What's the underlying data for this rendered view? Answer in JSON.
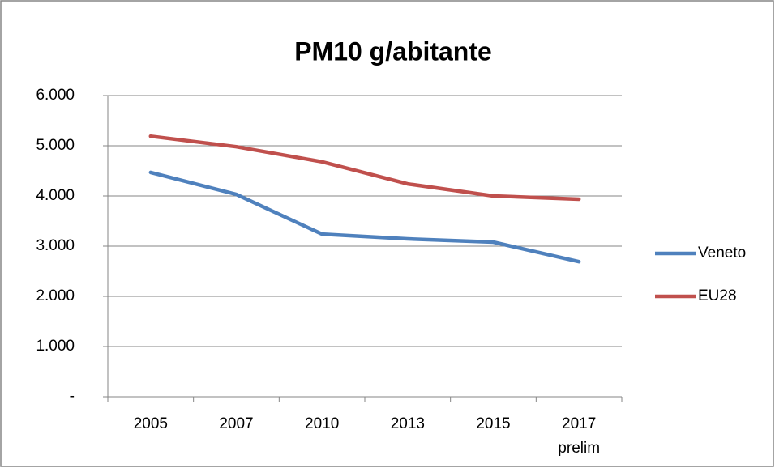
{
  "chart_data": {
    "type": "line",
    "title": "PM10 g/abitante",
    "categories": [
      "2005",
      "2007",
      "2010",
      "2013",
      "2015",
      "2017\nprelim"
    ],
    "series": [
      {
        "name": "Veneto",
        "color": "#4f81bd",
        "values": [
          4470,
          4030,
          3240,
          3145,
          3080,
          2690
        ]
      },
      {
        "name": "EU28",
        "color": "#c0504d",
        "values": [
          5190,
          4980,
          4680,
          4240,
          4000,
          3935
        ]
      }
    ],
    "ylim": [
      0,
      6000
    ],
    "yticks": [
      {
        "value": 0,
        "label": "-"
      },
      {
        "value": 1000,
        "label": "1.000"
      },
      {
        "value": 2000,
        "label": "2.000"
      },
      {
        "value": 3000,
        "label": "3.000"
      },
      {
        "value": 4000,
        "label": "4.000"
      },
      {
        "value": 5000,
        "label": "5.000"
      },
      {
        "value": 6000,
        "label": "6.000"
      }
    ],
    "grid": true,
    "legend": "right"
  }
}
